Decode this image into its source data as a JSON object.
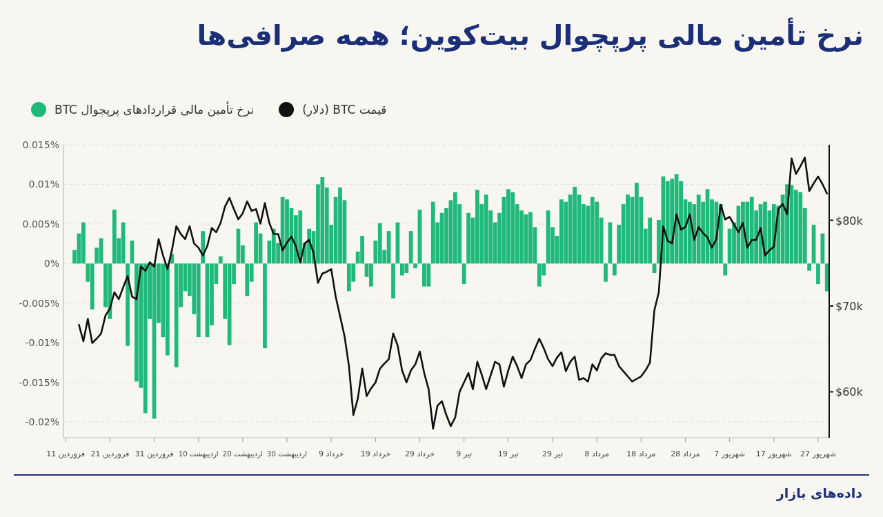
{
  "chart_data": {
    "type": "bar",
    "title": "نرخ تأمین مالی پرپچوال بیت‌کوین؛ همه صرافی‌ها",
    "annotations": [
      "داده‌های بازار"
    ],
    "legend": "top left",
    "grid": "y",
    "categories": [
      "11 فروردین",
      null,
      null,
      null,
      null,
      null,
      null,
      null,
      null,
      null,
      "21 فروردین",
      null,
      null,
      null,
      null,
      null,
      null,
      null,
      null,
      null,
      "31 فروردین",
      null,
      null,
      null,
      null,
      null,
      null,
      null,
      null,
      null,
      "10 اردیبهشت",
      null,
      null,
      null,
      null,
      null,
      null,
      null,
      null,
      null,
      "20 اردیبهشت",
      null,
      null,
      null,
      null,
      null,
      null,
      null,
      null,
      null,
      "30 اردیبهشت",
      null,
      null,
      null,
      null,
      null,
      null,
      null,
      null,
      null,
      "9 خرداد",
      null,
      null,
      null,
      null,
      null,
      null,
      null,
      null,
      null,
      "19 خرداد",
      null,
      null,
      null,
      null,
      null,
      null,
      null,
      null,
      null,
      "29 خرداد",
      null,
      null,
      null,
      null,
      null,
      null,
      null,
      null,
      null,
      "9 تیر",
      null,
      null,
      null,
      null,
      null,
      null,
      null,
      null,
      null,
      "19 تیر",
      null,
      null,
      null,
      null,
      null,
      null,
      null,
      null,
      null,
      "29 تیر",
      null,
      null,
      null,
      null,
      null,
      null,
      null,
      null,
      null,
      "8 مرداد",
      null,
      null,
      null,
      null,
      null,
      null,
      null,
      null,
      null,
      "18 مرداد",
      null,
      null,
      null,
      null,
      null,
      null,
      null,
      null,
      null,
      "28 مرداد",
      null,
      null,
      null,
      null,
      null,
      null,
      null,
      null,
      null,
      "7 شهریور",
      null,
      null,
      null,
      null,
      null,
      null,
      null,
      null,
      null,
      "17 شهریور",
      null,
      null,
      null,
      null,
      null,
      null,
      null,
      null,
      null,
      "27 شهریور",
      null,
      null
    ],
    "ylim": [
      -0.022,
      0.015
    ],
    "yticks": [
      {
        "value": -0.02,
        "label": "-0.02%"
      },
      {
        "value": -0.015,
        "label": "-0.015%"
      },
      {
        "value": -0.01,
        "label": "-0.01%"
      },
      {
        "value": -0.005,
        "label": "-0.005%"
      },
      {
        "value": 0,
        "label": "0%"
      },
      {
        "value": 0.005,
        "label": "0.005%"
      },
      {
        "value": 0.01,
        "label": "0.01%"
      },
      {
        "value": 0.015,
        "label": "0.015%"
      }
    ],
    "y2lim": [
      54650,
      88800
    ],
    "y2ticks": [
      {
        "value": 60000,
        "label": "$60k"
      },
      {
        "value": 70000,
        "label": "$70k"
      },
      {
        "value": 80000,
        "label": "$80k"
      }
    ],
    "series": [
      {
        "name": "نرخ تأمین مالی قراردادهای پرپچوال BTC",
        "color": "#1fb97a",
        "values": [
          null,
          null,
          0.0017,
          0.0038,
          0.0052,
          -0.0023,
          -0.0058,
          0.002,
          0.0032,
          -0.0055,
          -0.007,
          0.0068,
          0.0032,
          0.0052,
          -0.0104,
          0.0029,
          -0.0149,
          -0.0157,
          -0.0189,
          -0.007,
          -0.0196,
          -0.0075,
          -0.0093,
          -0.0116,
          0.0012,
          -0.0131,
          -0.0055,
          -0.0035,
          -0.0041,
          -0.0064,
          -0.0093,
          0.0041,
          -0.0093,
          -0.0078,
          -0.0026,
          0.0009,
          -0.007,
          -0.0103,
          -0.0026,
          0.0044,
          0.0023,
          -0.0041,
          -0.0023,
          0.0052,
          0.0038,
          -0.0107,
          0.0029,
          0.0044,
          0.0026,
          0.0084,
          0.0081,
          0.007,
          0.0061,
          0.0067,
          0.0026,
          0.0044,
          0.0041,
          0.01,
          0.0109,
          0.0096,
          0.0049,
          0.0084,
          0.0096,
          0.008,
          -0.0035,
          -0.0023,
          0.0015,
          0.0035,
          -0.0017,
          -0.0029,
          0.0029,
          0.0051,
          0.0017,
          0.0041,
          -0.0044,
          0.0052,
          -0.0015,
          -0.0012,
          0.0041,
          -0.0006,
          0.0068,
          -0.0029,
          -0.0029,
          0.0078,
          0.0052,
          0.0064,
          0.007,
          0.008,
          0.009,
          0.0075,
          -0.0026,
          0.0064,
          0.0058,
          0.0093,
          0.0075,
          0.0087,
          0.0067,
          0.0052,
          0.0064,
          0.0084,
          0.0094,
          0.009,
          0.0075,
          0.0067,
          0.0062,
          0.0065,
          0.0046,
          -0.0029,
          -0.0015,
          0.0067,
          0.0046,
          0.0035,
          0.0081,
          0.0078,
          0.0087,
          0.0097,
          0.0087,
          0.0075,
          0.0073,
          0.0084,
          0.0078,
          0.0058,
          -0.0023,
          0.0052,
          -0.0015,
          0.0049,
          0.0075,
          0.0087,
          0.0084,
          0.0102,
          0.0084,
          0.0044,
          0.0058,
          -0.0012,
          0.0055,
          0.011,
          0.0104,
          0.0107,
          0.0113,
          0.0104,
          0.0081,
          0.0078,
          0.0075,
          0.0087,
          0.0078,
          0.0094,
          0.0081,
          0.0078,
          0.0075,
          -0.0015,
          0.0044,
          0.0052,
          0.0073,
          0.0078,
          0.0078,
          0.0084,
          0.0067,
          0.0075,
          0.0078,
          0.0067,
          0.0075,
          0.0073,
          0.0087,
          0.01,
          0.0099,
          0.0093,
          0.009,
          0.007,
          -0.0009,
          0.0049,
          -0.0026,
          0.0038,
          -0.0035
        ]
      },
      {
        "name": "قیمت BTC (دلار)",
        "type": "line",
        "axis": "y2",
        "color": "#111111",
        "values": [
          null,
          null,
          null,
          67800,
          65900,
          68500,
          65700,
          66200,
          66800,
          68900,
          69700,
          71600,
          70800,
          72200,
          73500,
          71100,
          70800,
          74600,
          74100,
          75100,
          74600,
          77800,
          75900,
          74300,
          76500,
          79300,
          78400,
          77800,
          79300,
          77300,
          76800,
          75900,
          77000,
          79100,
          78600,
          79700,
          81600,
          82600,
          81300,
          80100,
          80800,
          82200,
          81100,
          81300,
          79600,
          82000,
          79700,
          78400,
          78400,
          76500,
          77400,
          78100,
          77000,
          75100,
          77300,
          77700,
          76200,
          72700,
          73800,
          74000,
          74300,
          71100,
          68800,
          66500,
          63000,
          57300,
          59200,
          62700,
          59500,
          60400,
          61100,
          62700,
          63300,
          63800,
          66800,
          65400,
          62500,
          61100,
          62500,
          63200,
          64700,
          62200,
          60300,
          55700,
          58400,
          58900,
          57300,
          56000,
          57000,
          60000,
          61100,
          62200,
          60300,
          63500,
          62000,
          60300,
          61900,
          63500,
          63200,
          60600,
          62500,
          64100,
          63000,
          61600,
          63200,
          63700,
          65000,
          66200,
          65100,
          63800,
          63000,
          64000,
          64600,
          62400,
          63500,
          64100,
          61400,
          61600,
          61200,
          63200,
          62500,
          63900,
          64500,
          64300,
          64300,
          63000,
          62400,
          61800,
          61200,
          61500,
          61800,
          62500,
          63400,
          69500,
          71600,
          79300,
          77600,
          77300,
          80700,
          78900,
          79200,
          80700,
          77700,
          79200,
          78500,
          78000,
          76800,
          77800,
          81800,
          80100,
          80400,
          79500,
          78600,
          79700,
          76800,
          77700,
          77700,
          79100,
          75900,
          76500,
          76900,
          81300,
          81900,
          80700,
          87200,
          85400,
          86300,
          87300,
          83400,
          84300,
          85100,
          84200,
          83100
        ]
      }
    ]
  }
}
